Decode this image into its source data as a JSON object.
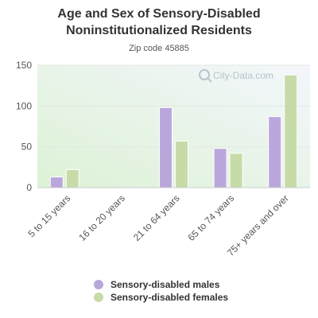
{
  "header": {
    "title": "Age and Sex of Sensory-Disabled Noninstitutionalized Residents",
    "subtitle": "Zip code 45885"
  },
  "watermark": "City-Data.com",
  "chart_data": {
    "type": "bar",
    "title": "Age and Sex of Sensory-Disabled Noninstitutionalized Residents",
    "subtitle": "Zip code 45885",
    "categories": [
      "5 to 15 years",
      "16 to 20 years",
      "21 to 64 years",
      "65 to 74 years",
      "75+ years and over"
    ],
    "series": [
      {
        "name": "Sensory-disabled males",
        "color": "#b9a7dc",
        "values": [
          13,
          0,
          98,
          48,
          87
        ]
      },
      {
        "name": "Sensory-disabled females",
        "color": "#c7dba8",
        "values": [
          22,
          0,
          57,
          42,
          138
        ]
      }
    ],
    "ylim": [
      0,
      150
    ],
    "yticks": [
      0,
      50,
      100,
      150
    ],
    "xlabel": "",
    "ylabel": "",
    "grid": true,
    "legend": "bottom"
  },
  "legend": {
    "items": [
      {
        "label": "Sensory-disabled males",
        "color": "#b9a7dc"
      },
      {
        "label": "Sensory-disabled females",
        "color": "#c7dba8"
      }
    ]
  }
}
